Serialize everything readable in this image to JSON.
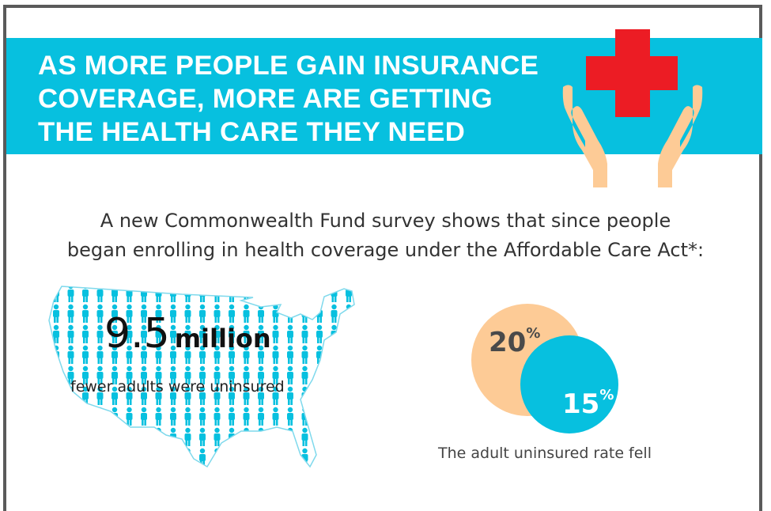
{
  "header": {
    "title_lines": [
      "AS MORE PEOPLE GAIN INSURANCE",
      "COVERAGE, MORE ARE GETTING",
      "THE HEALTH CARE THEY NEED"
    ],
    "icon": "hands-holding-red-cross-icon"
  },
  "intro": {
    "line1": "A new Commonwealth Fund survey shows that since people",
    "line2": "began enrolling in health coverage under the Affordable Care Act*:"
  },
  "stat_left": {
    "number": "9.5",
    "unit": "million",
    "description": "fewer adults were uninsured",
    "icon": "us-map-of-people-icons"
  },
  "stat_right": {
    "before": "20",
    "after": "15",
    "percent_sign": "%",
    "caption": "The adult uninsured rate fell"
  },
  "colors": {
    "banner": "#07c0df",
    "cross": "#ec1c24",
    "hands": "#fdcb96",
    "circle_before": "#fdcb96",
    "circle_after": "#07c0df"
  }
}
